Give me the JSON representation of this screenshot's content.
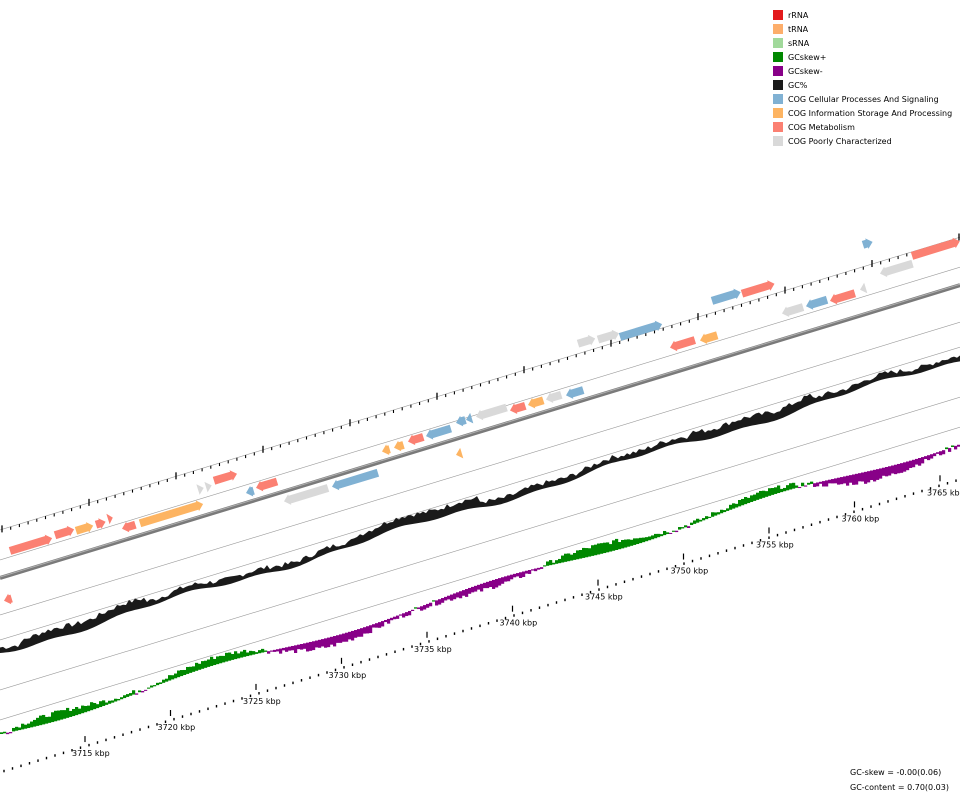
{
  "legend": [
    {
      "label": "rRNA",
      "color": "#e31a1c"
    },
    {
      "label": "tRNA",
      "color": "#fdae6b"
    },
    {
      "label": "sRNA",
      "color": "#a1d99b"
    },
    {
      "label": "GCskew+",
      "color": "#008800"
    },
    {
      "label": "GCskew-",
      "color": "#880088"
    },
    {
      "label": "GC%",
      "color": "#1a1a1a"
    },
    {
      "label": "COG Cellular Processes And Signaling",
      "color": "#80b1d3"
    },
    {
      "label": "COG Information Storage And Processing",
      "color": "#fdb462"
    },
    {
      "label": "COG Metabolism",
      "color": "#fb8072"
    },
    {
      "label": "COG Poorly Characterized",
      "color": "#d9d9d9"
    }
  ],
  "axis_labels": [
    "3715 kbp",
    "3720 kbp",
    "3725 kbp",
    "3730 kbp",
    "3735 kbp",
    "3740 kbp",
    "3745 kbp",
    "3750 kbp",
    "3755 kbp",
    "3760 kbp",
    "3765 kbp"
  ],
  "stats": {
    "gc_skew": "GC-skew = -0.00(0.06)",
    "gc_content": "GC-content = 0.70(0.03)"
  }
}
